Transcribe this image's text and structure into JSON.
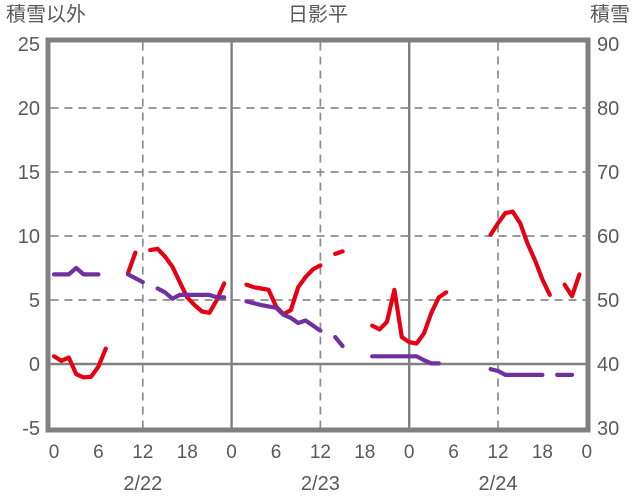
{
  "header": {
    "left_axis_title": "積雪以外",
    "chart_title": "日影平",
    "right_axis_title": "積雪"
  },
  "colors": {
    "red_series": "#e60012",
    "purple_series": "#7030a0",
    "border": "#808080",
    "grid": "#8c8c8c",
    "zero_line": "#808080",
    "text": "#595959"
  },
  "chart_data": {
    "type": "line",
    "title": "日影平",
    "grid": "dashed horizontal at left 5,10,15,20; solid line at left 0; dashed vertical at 12:00 each day; solid vertical at day boundaries",
    "legend_position": "none",
    "left_axis": {
      "title": "積雪以外",
      "ticks": [
        "25",
        "20",
        "15",
        "10",
        "5",
        "0",
        "-5"
      ],
      "tick_values": [
        25,
        20,
        15,
        10,
        5,
        0,
        -5
      ],
      "range": [
        -5,
        25
      ]
    },
    "right_axis": {
      "title": "積雪",
      "ticks": [
        "90",
        "80",
        "70",
        "60",
        "50",
        "40",
        "30"
      ],
      "tick_values": [
        90,
        80,
        70,
        60,
        50,
        40,
        30
      ],
      "range": [
        30,
        90
      ]
    },
    "x_axis": {
      "hours_range": [
        0,
        72
      ],
      "tick_hours": [
        0,
        6,
        12,
        18,
        24,
        30,
        36,
        42,
        48,
        54,
        60,
        66,
        72
      ],
      "hour_labels": [
        "0",
        "6",
        "12",
        "18",
        "0",
        "6",
        "12",
        "18",
        "0",
        "6",
        "12",
        "18",
        "0"
      ],
      "date_labels": [
        "2/22",
        "2/23",
        "2/24"
      ],
      "date_label_hours": [
        12,
        36,
        60
      ],
      "dashed_gridline_hours": [
        12,
        36,
        60
      ],
      "solid_gridline_hours": [
        24,
        48
      ]
    },
    "series": [
      {
        "name": "積雪以外",
        "axis": "left",
        "color": "#e60012",
        "x_step_hours": 1,
        "values": [
          0.6,
          0.25,
          0.5,
          -0.8,
          -1.05,
          -1.0,
          -0.2,
          1.2,
          null,
          null,
          7.1,
          8.7,
          null,
          8.9,
          9.0,
          8.4,
          7.6,
          6.4,
          5.2,
          4.6,
          4.1,
          4.0,
          5.0,
          6.3,
          null,
          null,
          6.2,
          6.0,
          5.9,
          5.8,
          4.5,
          3.9,
          4.2,
          6.0,
          6.8,
          7.4,
          7.7,
          null,
          8.6,
          8.8,
          null,
          null,
          null,
          3.0,
          2.7,
          3.3,
          5.8,
          2.1,
          1.7,
          1.6,
          2.4,
          4.0,
          5.2,
          5.6,
          null,
          null,
          null,
          null,
          null,
          10.1,
          11.0,
          11.8,
          11.9,
          11.0,
          9.4,
          8.1,
          6.6,
          5.4,
          null,
          6.2,
          5.3,
          7.0,
          null
        ]
      },
      {
        "name": "積雪",
        "axis": "right",
        "color": "#7030a0",
        "x_step_hours": 1,
        "values": [
          54,
          54,
          54,
          55,
          54,
          54,
          54,
          null,
          null,
          null,
          54,
          53.4,
          52.8,
          null,
          51.8,
          51.2,
          50.2,
          50.8,
          50.8,
          50.8,
          50.8,
          50.8,
          50.4,
          50.4,
          null,
          null,
          49.8,
          49.5,
          49.2,
          49.0,
          48.8,
          47.7,
          47.2,
          46.4,
          46.8,
          46.0,
          45.2,
          null,
          44.2,
          42.8,
          null,
          null,
          null,
          41.2,
          41.2,
          41.2,
          41.2,
          41.2,
          41.2,
          41.2,
          40.6,
          40.1,
          40.1,
          null,
          null,
          null,
          null,
          null,
          null,
          39.2,
          38.9,
          38.3,
          38.3,
          38.3,
          38.3,
          38.3,
          38.3,
          null,
          38.3,
          38.3,
          38.3,
          null
        ]
      }
    ]
  }
}
